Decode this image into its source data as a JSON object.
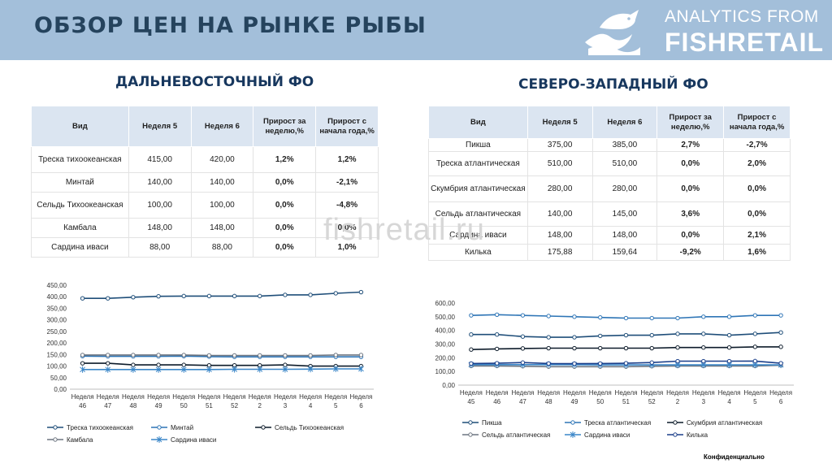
{
  "header": {
    "title": "ОБЗОР ЦЕН НА РЫНКЕ РЫБЫ",
    "brand_line1": "ANALYTICS FROM",
    "brand_line2": "FISHRETAIL",
    "logo_icon": "fish-wave-logo-icon",
    "background_color": "#a3bfda"
  },
  "watermark": "fishretail.ru",
  "footer": {
    "confidential": "Конфиденциально"
  },
  "regions": [
    {
      "title": "ДАЛЬНЕВОСТОЧНЫЙ ФО",
      "table": {
        "headers": [
          "Вид",
          "Неделя 5",
          "Неделя 6",
          "Прирост за неделю,%",
          "Прирост с начала года,%"
        ],
        "rows": [
          [
            "Треска тихоокеанская",
            "415,00",
            "420,00",
            "1,2%",
            "1,2%"
          ],
          [
            "Минтай",
            "140,00",
            "140,00",
            "0,0%",
            "-2,1%"
          ],
          [
            "Сельдь Тихоокеанская",
            "100,00",
            "100,00",
            "0,0%",
            "-4,8%"
          ],
          [
            "Камбала",
            "148,00",
            "148,00",
            "0,0%",
            "0,0%"
          ],
          [
            "Сардина иваси",
            "88,00",
            "88,00",
            "0,0%",
            "1,0%"
          ]
        ]
      }
    },
    {
      "title": "СЕВЕРО-ЗАПАДНЫЙ ФО",
      "table": {
        "headers": [
          "Вид",
          "Неделя 5",
          "Неделя 6",
          "Прирост за неделю,%",
          "Прирост с начала года,%"
        ],
        "rows": [
          [
            "Пикша",
            "375,00",
            "385,00",
            "2,7%",
            "-2,7%"
          ],
          [
            "Треска атлантическая",
            "510,00",
            "510,00",
            "0,0%",
            "2,0%"
          ],
          [
            "Скумбрия атлантическая",
            "280,00",
            "280,00",
            "0,0%",
            "0,0%"
          ],
          [
            "Сельдь атлантическая",
            "140,00",
            "145,00",
            "3,6%",
            "0,0%"
          ],
          [
            "Сардина иваси",
            "148,00",
            "148,00",
            "0,0%",
            "2,1%"
          ],
          [
            "Килька",
            "175,88",
            "159,64",
            "-9,2%",
            "1,6%"
          ]
        ]
      }
    }
  ],
  "chart_data": [
    {
      "type": "line",
      "categories": [
        "Неделя 46",
        "Неделя 47",
        "Неделя 48",
        "Неделя 49",
        "Неделя 50",
        "Неделя 51",
        "Неделя 52",
        "Неделя 2",
        "Неделя 3",
        "Неделя 4",
        "Неделя 5",
        "Неделя 6"
      ],
      "ylim": [
        0,
        450
      ],
      "yticks": [
        "0,00",
        "50,00",
        "100,00",
        "150,00",
        "200,00",
        "250,00",
        "300,00",
        "350,00",
        "400,00",
        "450,00"
      ],
      "grid": false,
      "legend_position": "bottom",
      "series": [
        {
          "name": "Треска тихоокеанская",
          "color": "#1f4e79",
          "marker": "circle",
          "values": [
            393,
            393,
            398,
            402,
            403,
            403,
            403,
            403,
            408,
            408,
            415,
            420
          ]
        },
        {
          "name": "Минтай",
          "color": "#2e75b6",
          "marker": "circle",
          "values": [
            143,
            142,
            142,
            142,
            143,
            141,
            140,
            140,
            140,
            140,
            140,
            140
          ]
        },
        {
          "name": "Сельдь Тихоокеанская",
          "color": "#0d1b2a",
          "marker": "circle",
          "values": [
            112,
            112,
            105,
            105,
            105,
            103,
            103,
            103,
            105,
            100,
            100,
            100
          ]
        },
        {
          "name": "Камбала",
          "color": "#6d7580",
          "marker": "circle",
          "values": [
            148,
            148,
            148,
            148,
            148,
            146,
            146,
            146,
            146,
            146,
            148,
            148
          ]
        },
        {
          "name": "Сардина иваси",
          "color": "#3a86c8",
          "marker": "star",
          "values": [
            85,
            85,
            85,
            85,
            85,
            85,
            86,
            86,
            86,
            87,
            88,
            88
          ]
        }
      ]
    },
    {
      "type": "line",
      "categories": [
        "Неделя 45",
        "Неделя 46",
        "Неделя 47",
        "Неделя 48",
        "Неделя 49",
        "Неделя 50",
        "Неделя 51",
        "Неделя 52",
        "Неделя 2",
        "Неделя 3",
        "Неделя 4",
        "Неделя 5",
        "Неделя 6"
      ],
      "ylim": [
        0,
        600
      ],
      "yticks": [
        "0,00",
        "100,00",
        "200,00",
        "300,00",
        "400,00",
        "500,00",
        "600,00"
      ],
      "grid": false,
      "legend_position": "bottom",
      "series": [
        {
          "name": "Пикша",
          "color": "#1f4e79",
          "marker": "circle",
          "values": [
            370,
            370,
            355,
            350,
            350,
            360,
            365,
            365,
            375,
            375,
            365,
            375,
            385
          ]
        },
        {
          "name": "Треска атлантическая",
          "color": "#2e75b6",
          "marker": "circle",
          "values": [
            510,
            515,
            510,
            505,
            500,
            495,
            490,
            490,
            490,
            500,
            500,
            510,
            510
          ]
        },
        {
          "name": "Скумбрия атлантическая",
          "color": "#0d1b2a",
          "marker": "circle",
          "values": [
            260,
            265,
            268,
            270,
            270,
            270,
            270,
            270,
            275,
            275,
            275,
            280,
            280
          ]
        },
        {
          "name": "Сельдь атлантическая",
          "color": "#6d7580",
          "marker": "circle",
          "values": [
            140,
            140,
            138,
            135,
            135,
            135,
            135,
            138,
            140,
            140,
            140,
            140,
            145
          ]
        },
        {
          "name": "Сардина иваси",
          "color": "#3a86c8",
          "marker": "star",
          "values": [
            150,
            150,
            150,
            150,
            150,
            148,
            148,
            148,
            148,
            148,
            148,
            148,
            148
          ]
        },
        {
          "name": "Килька",
          "color": "#1b3f8a",
          "marker": "circle",
          "values": [
            158,
            160,
            165,
            158,
            157,
            158,
            160,
            165,
            175,
            175,
            175,
            176,
            160
          ]
        }
      ]
    }
  ]
}
